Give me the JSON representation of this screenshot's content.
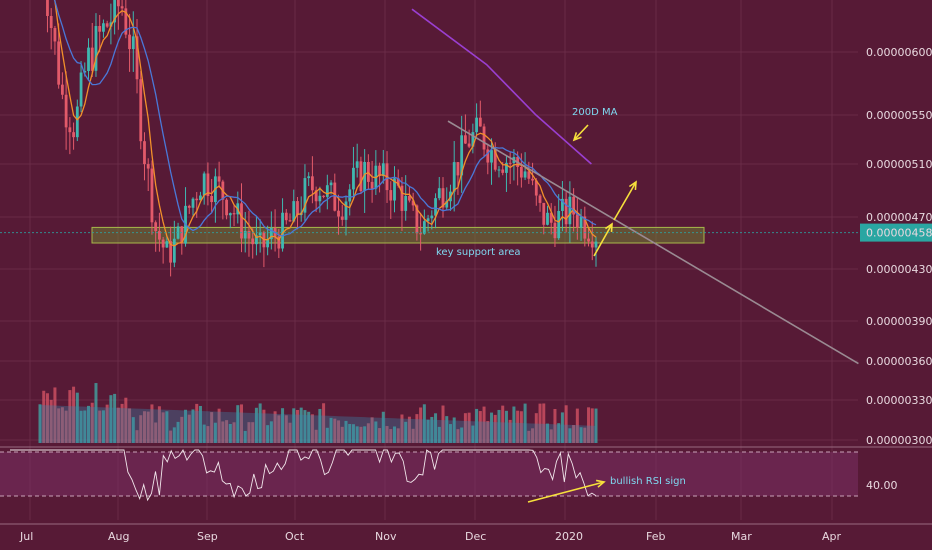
{
  "colors": {
    "background": "#571a36",
    "grid": "#6a2b47",
    "candle_up": "#3fb8b0",
    "candle_down": "#e25a6a",
    "ma_fast": "#f2902a",
    "ma_slow": "#4a78d8",
    "ma_200": "#9a3fd0",
    "trendline": "#9a8a92",
    "support_zone": "#6f7d34",
    "arrow": "#f6e03c",
    "annotation_text": "#7fd8f0",
    "price_tag": "#2aa6a2",
    "rsi_line": "#f1e6eb",
    "rsi_band": "#7a2f63"
  },
  "chart_data": {
    "type": "candlestick",
    "x_ticks": [
      "Jul",
      "Aug",
      "Sep",
      "Oct",
      "Nov",
      "Dec",
      "2020",
      "Feb",
      "Mar",
      "Apr"
    ],
    "y_ticks": [
      "0.00000600",
      "0.00000550",
      "0.00000510",
      "0.00000470",
      "0.00000430",
      "0.00000390",
      "0.00000360",
      "0.00000330",
      "0.00000300"
    ],
    "ylim": [
      3e-06,
      6.4e-06
    ],
    "last_price_label": "0.00000458",
    "last_price": 4.58e-06,
    "rsi_tick": "40.00",
    "annotations": {
      "ma200": "200D MA",
      "support": "key support area",
      "rsi": "bullish RSI sign"
    },
    "support_zone": [
      4.5e-06,
      4.62e-06
    ],
    "trendline": [
      {
        "x": "2019-11-22",
        "y": 5.45e-06
      },
      {
        "x": "2020-04-10",
        "y": 3.58e-06
      }
    ],
    "ma200": [
      {
        "x": "2019-11-10",
        "y": 6.34e-06
      },
      {
        "x": "2019-12-05",
        "y": 5.9e-06
      },
      {
        "x": "2019-12-22",
        "y": 5.5e-06
      },
      {
        "x": "2020-01-10",
        "y": 5.1e-06
      }
    ],
    "series": [
      {
        "name": "",
        "close": [
          6.9e-06,
          6.2e-06,
          5.6e-06,
          5.4e-06,
          5.9e-06,
          6.1e-06,
          6.25e-06,
          6.4e-06,
          6e-06,
          5.2e-06,
          4.6e-06,
          4.4e-06,
          4.55e-06,
          4.8e-06,
          5e-06,
          4.95e-06,
          4.85e-06,
          4.7e-06,
          4.55e-06,
          4.45e-06,
          4.55e-06,
          4.6e-06,
          4.7e-06,
          4.9e-06,
          4.95e-06,
          4.85e-06,
          4.8e-06,
          4.95e-06,
          5.05e-06,
          5e-06,
          4.95e-06,
          4.9e-06,
          4.7e-06,
          4.6e-06,
          4.8e-06,
          4.95e-06,
          5.1e-06,
          5.3e-06,
          5.35e-06,
          5.2e-06,
          5.15e-06,
          5.1e-06,
          5.05e-06,
          4.75e-06,
          4.65e-06,
          4.7e-06,
          4.75e-06,
          4.65e-06,
          4.58e-06
        ]
      }
    ]
  }
}
